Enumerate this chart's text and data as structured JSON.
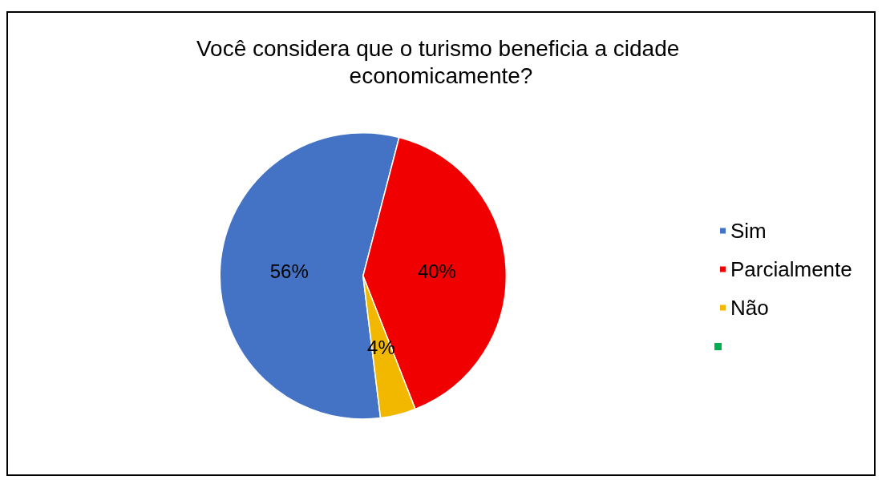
{
  "chart_data": {
    "type": "pie",
    "title": "Você considera que o turismo beneficia a cidade economicamente?",
    "categories": [
      "Sim",
      "Parcialmente",
      "Não"
    ],
    "values": [
      56,
      40,
      4
    ],
    "value_labels": [
      "56%",
      "40%",
      "4%"
    ],
    "colors": [
      "#4472c4",
      "#f00000",
      "#f2b800"
    ],
    "legend": "right"
  }
}
